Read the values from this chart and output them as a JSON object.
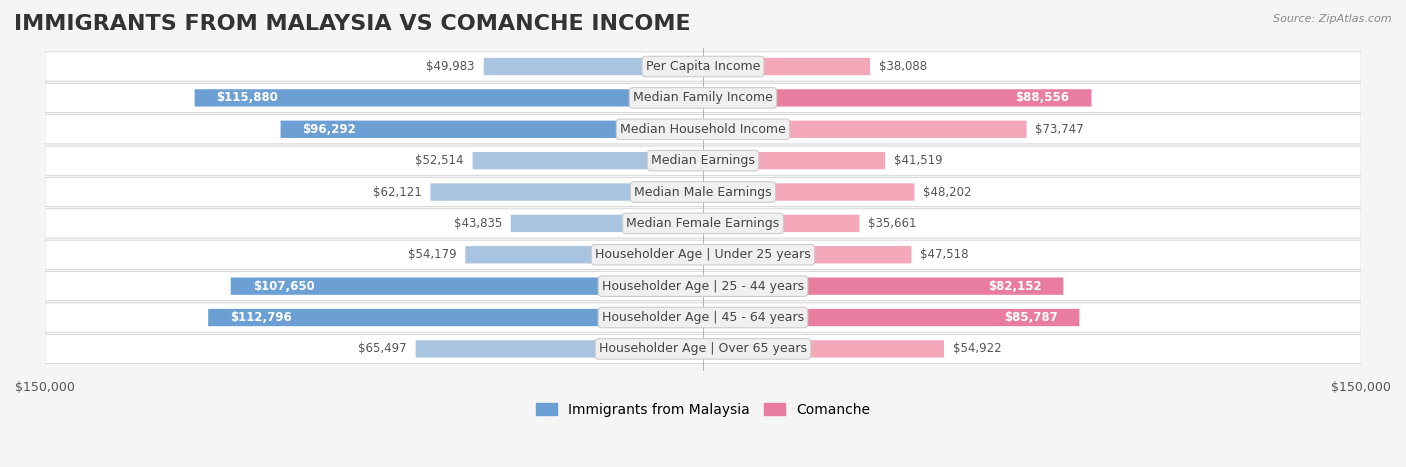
{
  "title": "IMMIGRANTS FROM MALAYSIA VS COMANCHE INCOME",
  "source": "Source: ZipAtlas.com",
  "categories": [
    "Per Capita Income",
    "Median Family Income",
    "Median Household Income",
    "Median Earnings",
    "Median Male Earnings",
    "Median Female Earnings",
    "Householder Age | Under 25 years",
    "Householder Age | 25 - 44 years",
    "Householder Age | 45 - 64 years",
    "Householder Age | Over 65 years"
  ],
  "malaysia_values": [
    49983,
    115880,
    96292,
    52514,
    62121,
    43835,
    54179,
    107650,
    112796,
    65497
  ],
  "comanche_values": [
    38088,
    88556,
    73747,
    41519,
    48202,
    35661,
    47518,
    82152,
    85787,
    54922
  ],
  "malaysia_color_light": "#a8c4e0",
  "malaysia_color_dark": "#6ca0d4",
  "comanche_color_light": "#f4a7b9",
  "comanche_color_dark": "#e87da0",
  "malaysia_threshold": 80000,
  "comanche_threshold": 80000,
  "max_value": 150000,
  "legend_malaysia": "Immigrants from Malaysia",
  "legend_comanche": "Comanche",
  "xlim": 150000,
  "background_color": "#f5f5f5",
  "row_bg_color": "#ffffff",
  "label_bg_color": "#f0f0f0",
  "title_fontsize": 16,
  "label_fontsize": 9,
  "value_fontsize": 8.5,
  "legend_fontsize": 10
}
